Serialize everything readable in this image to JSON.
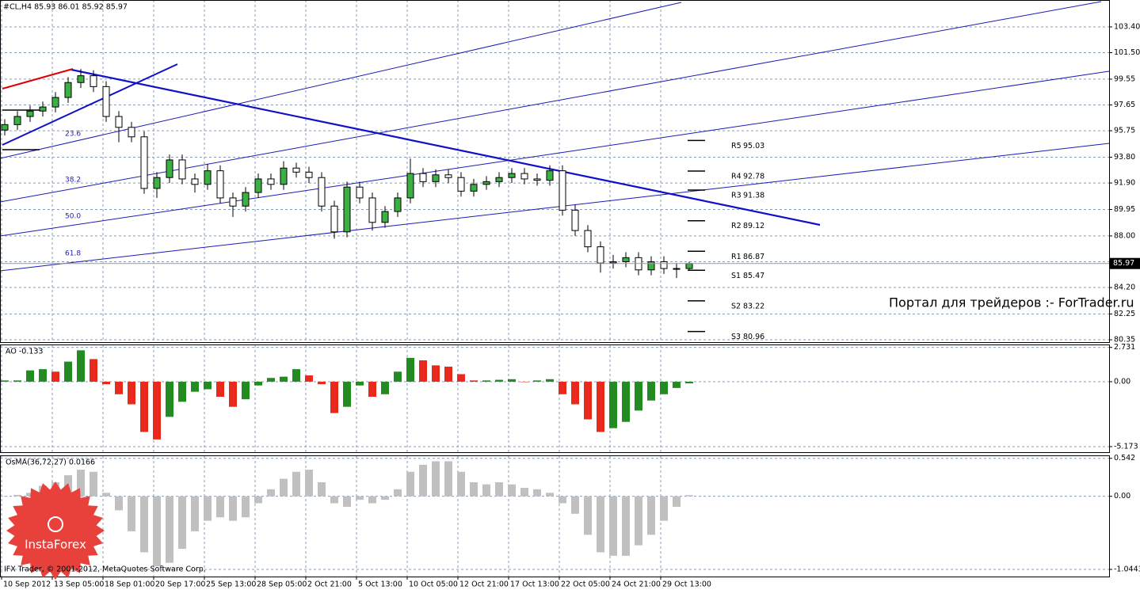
{
  "chart_data": [
    {
      "type": "candlestick",
      "title": "#CL,H4 85.93 86.01 85.92 85.97",
      "categories": [
        "10 Sep 2012",
        null,
        null,
        null,
        "13 Sep 05:00",
        null,
        null,
        null,
        "18 Sep 01:00",
        null,
        null,
        null,
        "20 Sep 17:00",
        null,
        null,
        null,
        "25 Sep 13:00",
        null,
        null,
        null,
        "28 Sep 05:00",
        null,
        null,
        null,
        "2 Oct 21:00",
        null,
        null,
        null,
        "5 Oct 13:00",
        null,
        null,
        null,
        "10 Oct 05:00",
        null,
        null,
        null,
        "12 Oct 21:00",
        null,
        null,
        null,
        "17 Oct 13:00",
        null,
        null,
        null,
        "22 Oct 05:00",
        null,
        null,
        null,
        "24 Oct 21:00",
        null,
        null,
        null,
        "29 Oct 13:00",
        null,
        null
      ],
      "open": [
        95.8,
        96.2,
        96.8,
        97.2,
        97.5,
        98.2,
        99.3,
        99.8,
        99.0,
        96.8,
        96.0,
        95.3,
        91.5,
        92.3,
        93.6,
        92.2,
        91.8,
        92.8,
        90.8,
        90.2,
        91.2,
        92.2,
        91.8,
        93.0,
        92.7,
        92.3,
        90.2,
        88.3,
        91.6,
        90.8,
        89.0,
        89.8,
        90.8,
        92.6,
        92.0,
        92.5,
        92.3,
        91.3,
        91.8,
        92.0,
        92.3,
        92.6,
        92.2,
        92.1,
        92.8,
        89.9,
        88.4,
        87.2,
        86.0,
        86.1,
        86.4,
        85.5,
        86.1,
        85.6,
        85.6
      ],
      "high": [
        96.6,
        97.2,
        97.6,
        97.9,
        98.6,
        99.7,
        100.3,
        100.2,
        99.4,
        97.2,
        96.4,
        95.7,
        92.7,
        94.0,
        94.0,
        92.6,
        93.3,
        93.2,
        91.2,
        91.6,
        92.6,
        92.6,
        93.5,
        93.4,
        93.1,
        92.7,
        90.6,
        92.0,
        92.0,
        91.2,
        90.2,
        91.2,
        93.7,
        93.0,
        92.9,
        92.9,
        92.7,
        92.2,
        92.4,
        92.7,
        93.0,
        93.0,
        92.6,
        93.2,
        93.2,
        90.3,
        88.8,
        87.6,
        86.6,
        86.8,
        86.8,
        86.5,
        86.5,
        86.0,
        86.1
      ],
      "low": [
        95.4,
        95.8,
        96.4,
        96.8,
        97.1,
        97.8,
        98.9,
        98.6,
        96.4,
        94.9,
        94.9,
        91.1,
        90.8,
        91.9,
        91.8,
        91.2,
        91.4,
        90.4,
        89.4,
        89.8,
        90.8,
        91.4,
        91.4,
        92.3,
        91.9,
        89.8,
        87.8,
        87.9,
        90.4,
        88.4,
        88.6,
        89.4,
        90.4,
        91.6,
        91.6,
        91.9,
        90.9,
        90.9,
        91.4,
        91.6,
        91.9,
        91.8,
        91.7,
        91.7,
        89.5,
        88.0,
        86.8,
        85.3,
        85.6,
        85.7,
        85.1,
        85.1,
        85.2,
        84.9,
        85.5
      ],
      "close": [
        96.2,
        96.8,
        97.2,
        97.5,
        98.2,
        99.3,
        99.8,
        99.0,
        96.8,
        96.0,
        95.3,
        91.5,
        92.3,
        93.6,
        92.2,
        91.8,
        92.8,
        90.8,
        90.2,
        91.2,
        92.2,
        91.8,
        93.0,
        92.7,
        92.3,
        90.2,
        88.3,
        91.6,
        90.8,
        89.0,
        89.8,
        90.8,
        92.6,
        92.0,
        92.5,
        92.3,
        91.3,
        91.8,
        92.0,
        92.3,
        92.6,
        92.2,
        92.1,
        92.8,
        89.9,
        88.4,
        87.2,
        86.0,
        86.1,
        86.4,
        85.5,
        86.1,
        85.6,
        85.6,
        85.97
      ],
      "up_color": "#3cb043",
      "down_color": "#ffffff",
      "ylim": [
        80.12,
        105.38
      ],
      "yticks": [
        {
          "value": 103.4,
          "label": "103.40"
        },
        {
          "value": 101.5,
          "label": "101.50"
        },
        99.55,
        97.65,
        95.75,
        {
          "value": 93.8,
          "label": "93.80"
        },
        {
          "value": 91.9,
          "label": "91.90"
        },
        89.95,
        {
          "value": 88.0,
          "label": "88.00"
        },
        {
          "value": 86.1,
          "label": "86.10"
        },
        {
          "value": 84.2,
          "label": "84.20"
        },
        82.25,
        80.35
      ],
      "grid": true,
      "last_price": 85.97,
      "fib_labels": [
        "23.6",
        "38.2",
        "50.0",
        "61.8"
      ],
      "pivots": [
        {
          "name": "R5",
          "value": 95.03
        },
        {
          "name": "R4",
          "value": 92.78
        },
        {
          "name": "R3",
          "value": 91.38
        },
        {
          "name": "R2",
          "value": 89.12
        },
        {
          "name": "R1",
          "value": 86.87
        },
        {
          "name": "S1",
          "value": 85.47
        },
        {
          "name": "S2",
          "value": 83.22
        },
        {
          "name": "S3",
          "value": 80.96
        }
      ]
    },
    {
      "type": "bar",
      "title": "AO -0.133",
      "values": [
        0.1,
        0.1,
        0.9,
        1.0,
        0.8,
        1.6,
        2.5,
        1.8,
        -0.2,
        -1.0,
        -1.8,
        -4.0,
        -4.6,
        -2.8,
        -1.6,
        -0.8,
        -0.6,
        -1.2,
        -2.0,
        -1.4,
        -0.3,
        0.3,
        0.4,
        1.0,
        0.5,
        -0.2,
        -2.5,
        -2.0,
        -0.3,
        -1.2,
        -1.0,
        0.8,
        1.9,
        1.7,
        1.3,
        1.2,
        0.6,
        0.1,
        0.1,
        0.15,
        0.2,
        0.0,
        0.1,
        0.2,
        -1.0,
        -1.8,
        -3.0,
        -4.0,
        -3.7,
        -3.2,
        -2.3,
        -1.5,
        -1.0,
        -0.5,
        -0.133
      ],
      "up_color": "#228b22",
      "down_color": "#e8291c",
      "ylim": [
        -5.68,
        2.9
      ],
      "yticks": [
        2.731,
        {
          "value": 0,
          "label": "0.00"
        },
        -5.173
      ],
      "grid": true
    },
    {
      "type": "bar",
      "title": "OsMA(36,72,27) 0.0166",
      "values": [
        0.0,
        0.02,
        0.05,
        0.15,
        0.2,
        0.3,
        0.38,
        0.35,
        0.05,
        -0.2,
        -0.5,
        -0.8,
        -1.0,
        -0.95,
        -0.75,
        -0.5,
        -0.35,
        -0.3,
        -0.35,
        -0.3,
        -0.1,
        0.1,
        0.25,
        0.35,
        0.38,
        0.2,
        -0.1,
        -0.15,
        -0.05,
        -0.1,
        -0.05,
        0.1,
        0.35,
        0.45,
        0.5,
        0.5,
        0.35,
        0.2,
        0.17,
        0.2,
        0.17,
        0.12,
        0.1,
        0.05,
        -0.1,
        -0.25,
        -0.55,
        -0.8,
        -0.85,
        -0.85,
        -0.7,
        -0.55,
        -0.35,
        -0.15,
        0.0166
      ],
      "color": "#c0c0c0",
      "ylim": [
        -1.146,
        0.573
      ],
      "yticks": [
        0.542,
        {
          "value": 0,
          "label": "0.00"
        },
        -1.0443
      ],
      "grid": true
    }
  ],
  "watermark": "Портал для трейдеров :- ForTrader.ru",
  "copyright": "IFX Trader, © 2001-2012, MetaQuotes Software Corp.",
  "logo": "InstaForex"
}
